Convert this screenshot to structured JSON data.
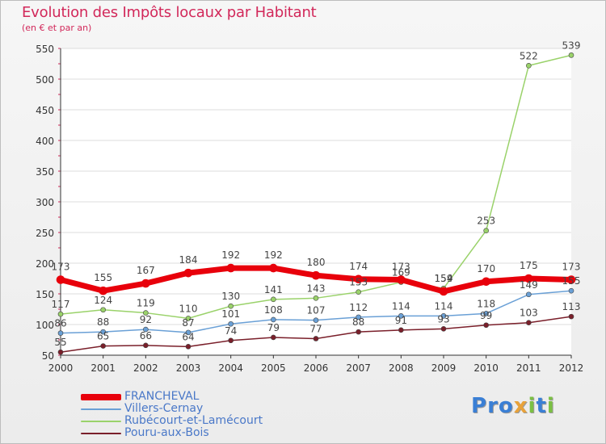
{
  "title": "Evolution des Impôts locaux par Habitant",
  "subtitle": "(en € et par an)",
  "logo": {
    "letters": [
      "P",
      "r",
      "o",
      "x",
      "i",
      "t",
      "i"
    ],
    "colors": [
      "#3a7fd5",
      "#3a7fd5",
      "#3a7fd5",
      "#e8a23a",
      "#7bc043",
      "#3a7fd5",
      "#7bc043"
    ]
  },
  "chart_data": {
    "type": "line",
    "title": "Evolution des Impôts locaux par Habitant",
    "subtitle": "(en € et par an)",
    "xlabel": "",
    "ylabel": "",
    "x": [
      "2000",
      "2001",
      "2002",
      "2003",
      "2004",
      "2005",
      "2006",
      "2007",
      "2008",
      "2009",
      "2010",
      "2011",
      "2012"
    ],
    "ylim": [
      50,
      550
    ],
    "yticks": [
      50,
      100,
      150,
      200,
      250,
      300,
      350,
      400,
      450,
      500,
      550
    ],
    "series": [
      {
        "name": "FRANCHEVAL",
        "color": "#e8000b",
        "width": 7,
        "values": [
          173,
          155,
          167,
          184,
          192,
          192,
          180,
          174,
          173,
          154,
          170,
          175,
          173
        ]
      },
      {
        "name": "Villers-Cernay",
        "color": "#6aa0d6",
        "width": 1.5,
        "values": [
          86,
          88,
          92,
          87,
          101,
          108,
          107,
          112,
          114,
          114,
          118,
          149,
          155
        ]
      },
      {
        "name": "Rubécourt-et-Lamécourt",
        "color": "#9ad26a",
        "width": 1.5,
        "values": [
          117,
          124,
          119,
          110,
          130,
          141,
          143,
          153,
          169,
          159,
          253,
          522,
          539
        ]
      },
      {
        "name": "Pouru-aux-Bois",
        "color": "#7a1f2a",
        "width": 1.5,
        "values": [
          55,
          65,
          66,
          64,
          74,
          79,
          77,
          88,
          91,
          93,
          99,
          103,
          113
        ]
      }
    ]
  }
}
